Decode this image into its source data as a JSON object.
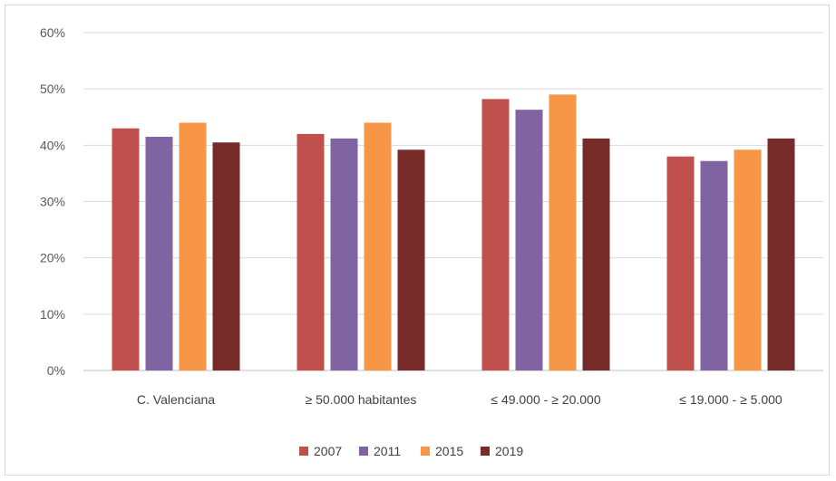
{
  "chart_data": {
    "type": "bar",
    "title": "",
    "xlabel": "",
    "ylabel": "",
    "categories": [
      "C. Valenciana",
      "≥ 50.000 habitantes",
      "≤ 49.000 - ≥ 20.000",
      "≤ 19.000 - ≥ 5.000"
    ],
    "series": [
      {
        "name": "2007",
        "color": "#c0504d",
        "values": [
          0.43,
          0.42,
          0.482,
          0.38
        ]
      },
      {
        "name": "2011",
        "color": "#8064a2",
        "values": [
          0.415,
          0.412,
          0.463,
          0.372
        ]
      },
      {
        "name": "2015",
        "color": "#f79646",
        "values": [
          0.44,
          0.44,
          0.49,
          0.392
        ]
      },
      {
        "name": "2019",
        "color": "#772c2a",
        "values": [
          0.405,
          0.392,
          0.412,
          0.412
        ]
      }
    ],
    "ylim": [
      0,
      0.6
    ],
    "yticks": [
      "0%",
      "10%",
      "20%",
      "30%",
      "40%",
      "50%",
      "60%"
    ],
    "grid": true,
    "legend": "bottom"
  }
}
